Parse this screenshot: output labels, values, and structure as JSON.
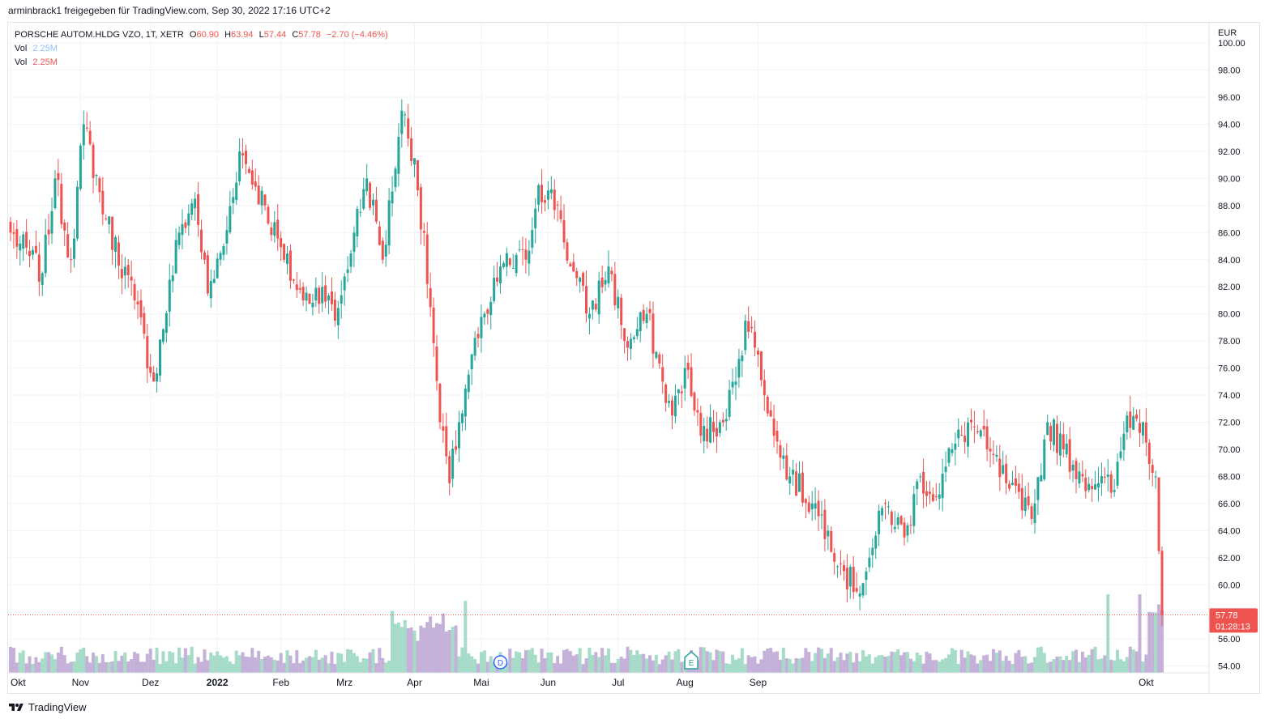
{
  "header": {
    "text": "arminbrack1 freigegeben für TradingView.com, Sep 30, 2022 17:16 UTC+2"
  },
  "legend": {
    "symbol": "PORSCHE AUTOM.HLDG VZO, 1T, XETR",
    "o_label": "O",
    "o_value": "60.90",
    "h_label": "H",
    "h_value": "63.94",
    "l_label": "L",
    "l_value": "57.44",
    "c_label": "C",
    "c_value": "57.78",
    "change": "−2.70 (−4.46%)",
    "vol1_label": "Vol",
    "vol1_value": "2.25M",
    "vol2_label": "Vol",
    "vol2_value": "2.25M"
  },
  "footer": {
    "brand": "TradingView"
  },
  "colors": {
    "up": "#26a69a",
    "down": "#ef5350",
    "vol_up": "#a5dbc7",
    "vol_down": "#c4b0d8",
    "grid": "#f0f3fa"
  },
  "icons": {
    "dividend_marker": "D",
    "earnings_marker": "E"
  },
  "chart_data": {
    "type": "candlestick",
    "currency": "EUR",
    "ylim": [
      53.5,
      101.5
    ],
    "y_ticks": [
      "100.00",
      "98.00",
      "96.00",
      "94.00",
      "92.00",
      "90.00",
      "88.00",
      "86.00",
      "84.00",
      "82.00",
      "80.00",
      "78.00",
      "76.00",
      "74.00",
      "72.00",
      "70.00",
      "68.00",
      "66.00",
      "64.00",
      "62.00",
      "60.00",
      "58.00",
      "56.00",
      "54.00"
    ],
    "x_ticks": [
      "Okt",
      "Nov",
      "Dez",
      "2022",
      "Feb",
      "Mrz",
      "Apr",
      "Mai",
      "Jun",
      "Jul",
      "Aug",
      "Sep",
      "Okt"
    ],
    "last_price": "57.78",
    "countdown": "01:28:13",
    "grid": true,
    "close_anchors": [
      [
        0,
        86.0
      ],
      [
        10,
        83.0
      ],
      [
        14,
        90.0
      ],
      [
        19,
        84.0
      ],
      [
        23,
        94.0
      ],
      [
        30,
        87.0
      ],
      [
        39,
        81.0
      ],
      [
        45,
        75.0
      ],
      [
        53,
        86.0
      ],
      [
        58,
        88.5
      ],
      [
        62,
        81.5
      ],
      [
        67,
        85.0
      ],
      [
        72,
        92.0
      ],
      [
        80,
        88.0
      ],
      [
        86,
        84.0
      ],
      [
        92,
        81.0
      ],
      [
        98,
        82.0
      ],
      [
        102,
        79.5
      ],
      [
        108,
        86.0
      ],
      [
        112,
        90.0
      ],
      [
        117,
        84.0
      ],
      [
        123,
        95.0
      ],
      [
        127,
        91.5
      ],
      [
        132,
        80.5
      ],
      [
        135,
        72.0
      ],
      [
        138,
        67.5
      ],
      [
        141,
        72.0
      ],
      [
        145,
        77.0
      ],
      [
        150,
        80.0
      ],
      [
        154,
        83.5
      ],
      [
        162,
        84.0
      ],
      [
        166,
        89.5
      ],
      [
        172,
        88.0
      ],
      [
        176,
        83.5
      ],
      [
        182,
        80.0
      ],
      [
        188,
        83.5
      ],
      [
        194,
        77.5
      ],
      [
        200,
        80.0
      ],
      [
        205,
        75.0
      ],
      [
        208,
        72.5
      ],
      [
        212,
        76.0
      ],
      [
        217,
        71.0
      ],
      [
        223,
        72.0
      ],
      [
        228,
        75.0
      ],
      [
        231,
        79.5
      ],
      [
        235,
        77.0
      ],
      [
        240,
        71.0
      ],
      [
        245,
        68.0
      ],
      [
        252,
        66.0
      ],
      [
        257,
        64.0
      ],
      [
        262,
        61.0
      ],
      [
        266,
        59.5
      ],
      [
        270,
        62.0
      ],
      [
        275,
        66.0
      ],
      [
        281,
        63.5
      ],
      [
        286,
        68.0
      ],
      [
        291,
        66.5
      ],
      [
        296,
        70.0
      ],
      [
        302,
        72.0
      ],
      [
        307,
        70.0
      ],
      [
        313,
        67.5
      ],
      [
        318,
        65.5
      ],
      [
        322,
        66.0
      ],
      [
        326,
        72.0
      ],
      [
        331,
        70.0
      ],
      [
        337,
        68.0
      ],
      [
        342,
        67.5
      ],
      [
        347,
        67.0
      ],
      [
        351,
        72.5
      ],
      [
        356,
        72.0
      ],
      [
        360,
        68.0
      ],
      [
        362,
        57.78
      ]
    ],
    "volume_scale_max": 13.0,
    "volume_units": "M"
  }
}
